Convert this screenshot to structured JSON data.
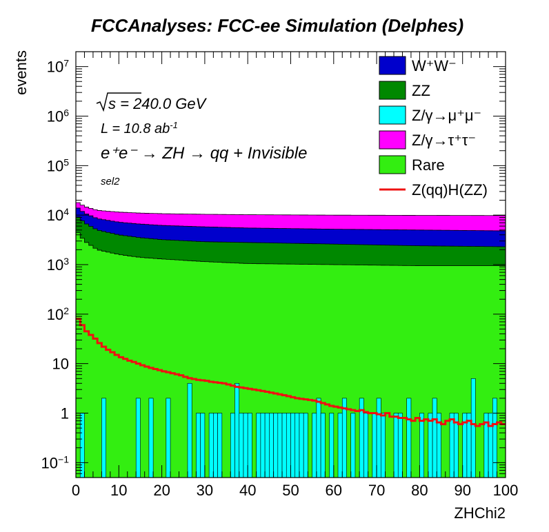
{
  "chart_data": {
    "type": "area",
    "stacked": true,
    "title": "FCCAnalyses: FCC-ee Simulation (Delphes)",
    "xlabel": "ZHChi2",
    "ylabel": "events",
    "xlim": [
      0,
      100
    ],
    "ylim": [
      0.05,
      20000000
    ],
    "yscale": "log",
    "x_ticks": [
      "0",
      "10",
      "20",
      "30",
      "40",
      "50",
      "60",
      "70",
      "80",
      "90",
      "100"
    ],
    "y_ticks": [
      {
        "value": 0.1,
        "base": "10",
        "exp": "−1"
      },
      {
        "value": 1,
        "base": "1",
        "exp": ""
      },
      {
        "value": 10,
        "base": "10",
        "exp": ""
      },
      {
        "value": 100,
        "base": "10",
        "exp": "2"
      },
      {
        "value": 1000,
        "base": "10",
        "exp": "3"
      },
      {
        "value": 10000,
        "base": "10",
        "exp": "4"
      },
      {
        "value": 100000,
        "base": "10",
        "exp": "5"
      },
      {
        "value": 1000000,
        "base": "10",
        "exp": "6"
      },
      {
        "value": 10000000,
        "base": "10",
        "exp": "7"
      }
    ],
    "annotations": {
      "sqrt_s": "s = 240.0 GeV",
      "lumi_prefix": "L = 10.8 ab",
      "lumi_exp": "-1",
      "process": "e⁺e⁻ → ZH → qq + Invisible",
      "selection": "sel2"
    },
    "legend_position": "top-right",
    "bin_width": 1,
    "bin_edges_every": 1,
    "stack_totals_control_points": {
      "x": [
        0,
        2,
        5,
        10,
        15,
        20,
        30,
        40,
        60,
        80,
        100
      ],
      "rare": [
        5000,
        3000,
        2000,
        1600,
        1400,
        1300,
        1150,
        1050,
        1000,
        950,
        950
      ],
      "zz": [
        10000,
        7000,
        5000,
        4000,
        3500,
        3200,
        2900,
        2800,
        2600,
        2400,
        2300
      ],
      "zmumu": [
        10000,
        7000,
        5000,
        4000,
        3500,
        3200,
        2900,
        2800,
        2600,
        2400,
        2300
      ],
      "ww": [
        15000,
        11000,
        8500,
        7200,
        6600,
        6200,
        5800,
        5500,
        5200,
        5000,
        4800
      ],
      "total": [
        19000,
        15000,
        12500,
        11500,
        11000,
        10700,
        10400,
        10200,
        10000,
        9900,
        9800
      ]
    },
    "zmumu_own_bins": [
      0,
      1,
      0,
      0,
      0,
      0,
      2,
      0,
      0,
      0,
      0,
      0,
      0,
      0,
      2,
      0,
      0,
      2,
      0,
      0,
      0,
      2,
      0,
      0,
      0,
      0,
      4,
      0,
      1,
      1,
      0,
      1,
      1,
      1,
      0,
      0,
      1,
      4,
      1,
      1,
      1,
      0,
      1,
      1,
      1,
      1,
      1,
      1,
      1,
      1,
      1,
      1,
      1,
      1,
      0,
      1,
      2,
      1,
      0,
      1,
      0,
      1,
      2,
      0,
      1,
      0,
      2,
      1,
      0,
      1,
      2,
      1,
      0,
      0,
      1,
      1,
      0,
      2,
      0,
      0,
      1,
      0,
      1,
      2,
      1,
      0,
      0,
      1,
      1,
      0,
      1,
      1,
      5,
      0,
      0,
      1,
      1,
      2,
      0,
      0
    ],
    "signal_ZqqHZZ": [
      80,
      60,
      45,
      38,
      32,
      26,
      22,
      19,
      17,
      15,
      13.5,
      12.5,
      11.5,
      10.8,
      10,
      9.3,
      8.7,
      8.2,
      7.8,
      7.4,
      7,
      6.7,
      6.4,
      6.1,
      5.8,
      5.4,
      5.1,
      4.9,
      4.7,
      4.6,
      4.5,
      4.3,
      4.2,
      4.1,
      4,
      3.8,
      3.6,
      3.4,
      3.3,
      3.2,
      3.1,
      3,
      2.9,
      2.8,
      2.7,
      2.6,
      2.5,
      2.4,
      2.3,
      2.2,
      2.1,
      2,
      1.95,
      1.9,
      1.85,
      1.8,
      1.7,
      1.6,
      1.5,
      1.4,
      1.35,
      1.3,
      1.25,
      1.2,
      1.15,
      1.1,
      1.15,
      1.05,
      1,
      1,
      0.95,
      0.9,
      1,
      0.85,
      0.85,
      0.8,
      0.8,
      0.75,
      0.7,
      0.8,
      0.7,
      0.75,
      0.7,
      0.75,
      0.65,
      0.6,
      0.7,
      0.75,
      0.65,
      0.6,
      0.65,
      0.7,
      0.6,
      0.55,
      0.6,
      0.65,
      0.55,
      0.6,
      0.65,
      0.6
    ],
    "series": [
      {
        "name": "W⁺W⁻",
        "color": "#0000cc",
        "legend_html": "W<tspan baseline-shift=\"super\" font-size=\"12\">+</tspan>W<tspan baseline-shift=\"super\" font-size=\"12\">-</tspan>"
      },
      {
        "name": "ZZ",
        "color": "#008800"
      },
      {
        "name": "Z/γ→μ⁺μ⁻",
        "color": "#00ffff"
      },
      {
        "name": "Z/γ→τ⁺τ⁻",
        "color": "#ff00ff"
      },
      {
        "name": "Rare",
        "color": "#33ee11"
      },
      {
        "name": "Z(qq)H(ZZ)",
        "color": "#ee1111",
        "style": "line"
      }
    ]
  }
}
